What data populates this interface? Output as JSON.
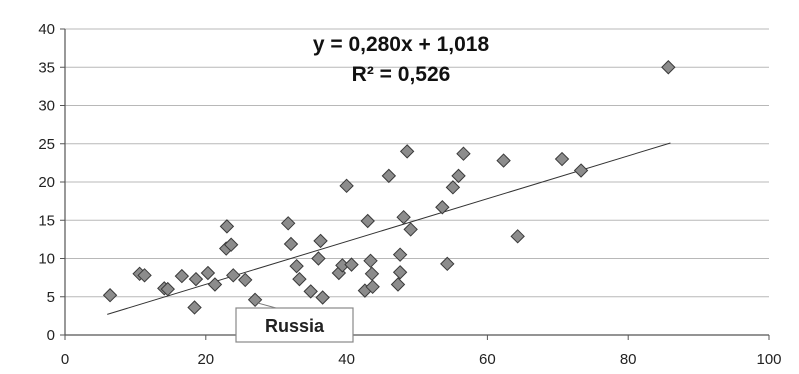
{
  "chart_data": {
    "type": "scatter",
    "title": "",
    "xlabel": "",
    "ylabel": "",
    "xlim": [
      0,
      100
    ],
    "ylim": [
      0,
      40
    ],
    "x_ticks": [
      0,
      20,
      40,
      60,
      80,
      100
    ],
    "y_ticks": [
      0,
      5,
      10,
      15,
      20,
      25,
      30,
      35,
      40
    ],
    "grid": "horizontal",
    "marker": "diamond",
    "marker_color": "#8c8c8c",
    "marker_edge": "#3a3a3a",
    "trendline": {
      "type": "linear",
      "slope": 0.28,
      "intercept": 1.018,
      "x_range": [
        6,
        86
      ],
      "equation_text": "y = 0,280x + 1,018",
      "r2_text": "R² = 0,526"
    },
    "callout": {
      "label": "Russia",
      "x": 27,
      "y": 4.6
    },
    "points": [
      {
        "x": 6.4,
        "y": 5.2
      },
      {
        "x": 10.6,
        "y": 8.0
      },
      {
        "x": 11.3,
        "y": 7.8
      },
      {
        "x": 14.1,
        "y": 6.1
      },
      {
        "x": 14.6,
        "y": 6.0
      },
      {
        "x": 16.6,
        "y": 7.7
      },
      {
        "x": 18.4,
        "y": 3.6
      },
      {
        "x": 18.6,
        "y": 7.3
      },
      {
        "x": 20.3,
        "y": 8.1
      },
      {
        "x": 21.3,
        "y": 6.6
      },
      {
        "x": 22.9,
        "y": 11.3
      },
      {
        "x": 23.0,
        "y": 14.2
      },
      {
        "x": 23.6,
        "y": 11.8
      },
      {
        "x": 23.9,
        "y": 7.8
      },
      {
        "x": 25.6,
        "y": 7.2
      },
      {
        "x": 27.0,
        "y": 4.6
      },
      {
        "x": 31.7,
        "y": 14.6
      },
      {
        "x": 32.1,
        "y": 11.9
      },
      {
        "x": 32.9,
        "y": 9.0
      },
      {
        "x": 33.3,
        "y": 7.3
      },
      {
        "x": 34.9,
        "y": 5.7
      },
      {
        "x": 36.0,
        "y": 10.0
      },
      {
        "x": 36.3,
        "y": 12.3
      },
      {
        "x": 36.6,
        "y": 4.9
      },
      {
        "x": 38.9,
        "y": 8.1
      },
      {
        "x": 39.4,
        "y": 9.1
      },
      {
        "x": 40.0,
        "y": 19.5
      },
      {
        "x": 40.7,
        "y": 9.2
      },
      {
        "x": 42.6,
        "y": 5.8
      },
      {
        "x": 43.0,
        "y": 14.9
      },
      {
        "x": 43.4,
        "y": 9.7
      },
      {
        "x": 43.6,
        "y": 8.0
      },
      {
        "x": 43.7,
        "y": 6.3
      },
      {
        "x": 46.0,
        "y": 20.8
      },
      {
        "x": 47.3,
        "y": 6.6
      },
      {
        "x": 47.6,
        "y": 8.2
      },
      {
        "x": 47.6,
        "y": 10.5
      },
      {
        "x": 48.1,
        "y": 15.4
      },
      {
        "x": 48.6,
        "y": 24.0
      },
      {
        "x": 49.1,
        "y": 13.8
      },
      {
        "x": 53.6,
        "y": 16.7
      },
      {
        "x": 54.3,
        "y": 9.3
      },
      {
        "x": 55.1,
        "y": 19.3
      },
      {
        "x": 55.9,
        "y": 20.8
      },
      {
        "x": 56.6,
        "y": 23.7
      },
      {
        "x": 62.3,
        "y": 22.8
      },
      {
        "x": 64.3,
        "y": 12.9
      },
      {
        "x": 70.6,
        "y": 23.0
      },
      {
        "x": 73.3,
        "y": 21.5
      },
      {
        "x": 85.7,
        "y": 35.0
      }
    ]
  }
}
